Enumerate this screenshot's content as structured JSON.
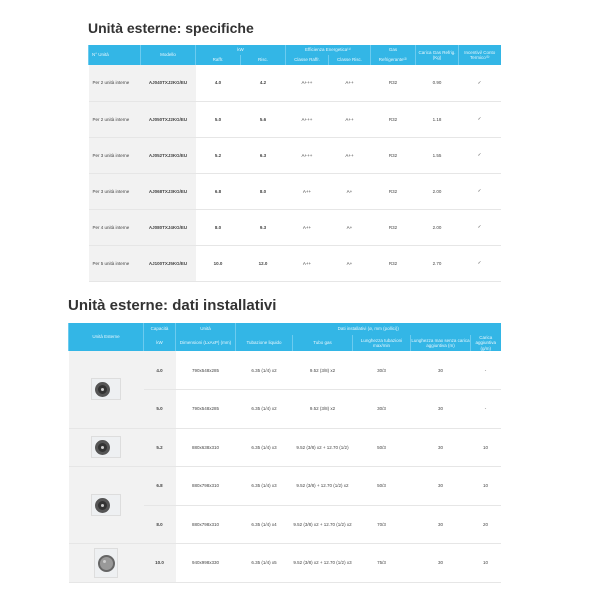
{
  "specs": {
    "title": "Unità esterne: specifiche",
    "headers": {
      "units": "N° Unità",
      "model": "Modello",
      "kw": "kW",
      "cool": "Raffr.",
      "heat": "Risc.",
      "eff": "Efficienza Energetica⁽¹⁾",
      "eff_cool": "Classe Raffr.",
      "eff_heat": "Classe Risc.",
      "gas": "Gas",
      "gas_sub": "Refrigerante⁽²⁾",
      "charge": "Carica Gas Refrig. (Kg)",
      "incent": "Incentivi/ Conto Termico⁽³⁾"
    },
    "rows": [
      [
        "Per 2 unità interne",
        "AJ040TXJ2KG/EU",
        "4.0",
        "4.2",
        "A+++",
        "A++",
        "R32",
        "0.90",
        "✓"
      ],
      [
        "Per 2 unità interne",
        "AJ050TXJ2KG/EU",
        "5.0",
        "5.6",
        "A+++",
        "A++",
        "R32",
        "1.18",
        "✓"
      ],
      [
        "Per 3 unità interne",
        "AJ052TXJ3KG/EU",
        "5.2",
        "6.3",
        "A+++",
        "A++",
        "R32",
        "1.55",
        "✓"
      ],
      [
        "Per 3 unità interne",
        "AJ068TXJ3KG/EU",
        "6.8",
        "8.0",
        "A++",
        "A+",
        "R32",
        "2.00",
        "✓"
      ],
      [
        "Per 4 unità interne",
        "AJ080TXJ4KG/EU",
        "8.0",
        "9.3",
        "A++",
        "A+",
        "R32",
        "2.00",
        "✓"
      ],
      [
        "Per 5 unità interne",
        "AJ100TXJ5KG/EU",
        "10.0",
        "12.0",
        "A++",
        "A+",
        "R32",
        "2.70",
        "✓"
      ]
    ]
  },
  "install": {
    "title": "Unità esterne: dati installativi",
    "headers": {
      "unit": "Unità Esterne",
      "cap": "Capacità",
      "cap_unit": "kW",
      "u": "Unità",
      "dim": "Dimensioni (LxAxP) (mm)",
      "data": "Dati installativi (ø, mm (pollici))",
      "liq": "Tubazione liquido",
      "gas": "Tubo gas",
      "len": "Lunghezza tubazioni max/min",
      "maxlen": "Lunghezza max senza carica aggiuntiva (m)",
      "add": "Carica aggiuntiva (g/m)"
    },
    "rows": [
      [
        "4.0",
        "790x548x285",
        "6.35 (1/4) x2",
        "9.52 (3/8) x2",
        "30/3",
        "30",
        "-"
      ],
      [
        "5.0",
        "790x548x285",
        "6.35 (1/4) x2",
        "9.52 (3/8) x2",
        "30/3",
        "30",
        "-"
      ],
      [
        "5.2",
        "880x638x310",
        "6.35 (1/4) x3",
        "9.52 (3/8) x2 + 12.70 (1/2)",
        "50/3",
        "30",
        "10"
      ],
      [
        "6.8",
        "880x798x310",
        "6.35 (1/4) x3",
        "9.52 (3/8) + 12.70 (1/2) x2",
        "50/3",
        "30",
        "10"
      ],
      [
        "8.0",
        "880x798x310",
        "6.35 (1/4) x4",
        "9.52 (3/8) x2 + 12.70 (1/2) x2",
        "70/3",
        "30",
        "20"
      ],
      [
        "10.0",
        "940x998x330",
        "6.35 (1/4) x5",
        "9.52 (3/8) x2 + 12.70 (1/2) x3",
        "75/3",
        "30",
        "10"
      ]
    ]
  }
}
